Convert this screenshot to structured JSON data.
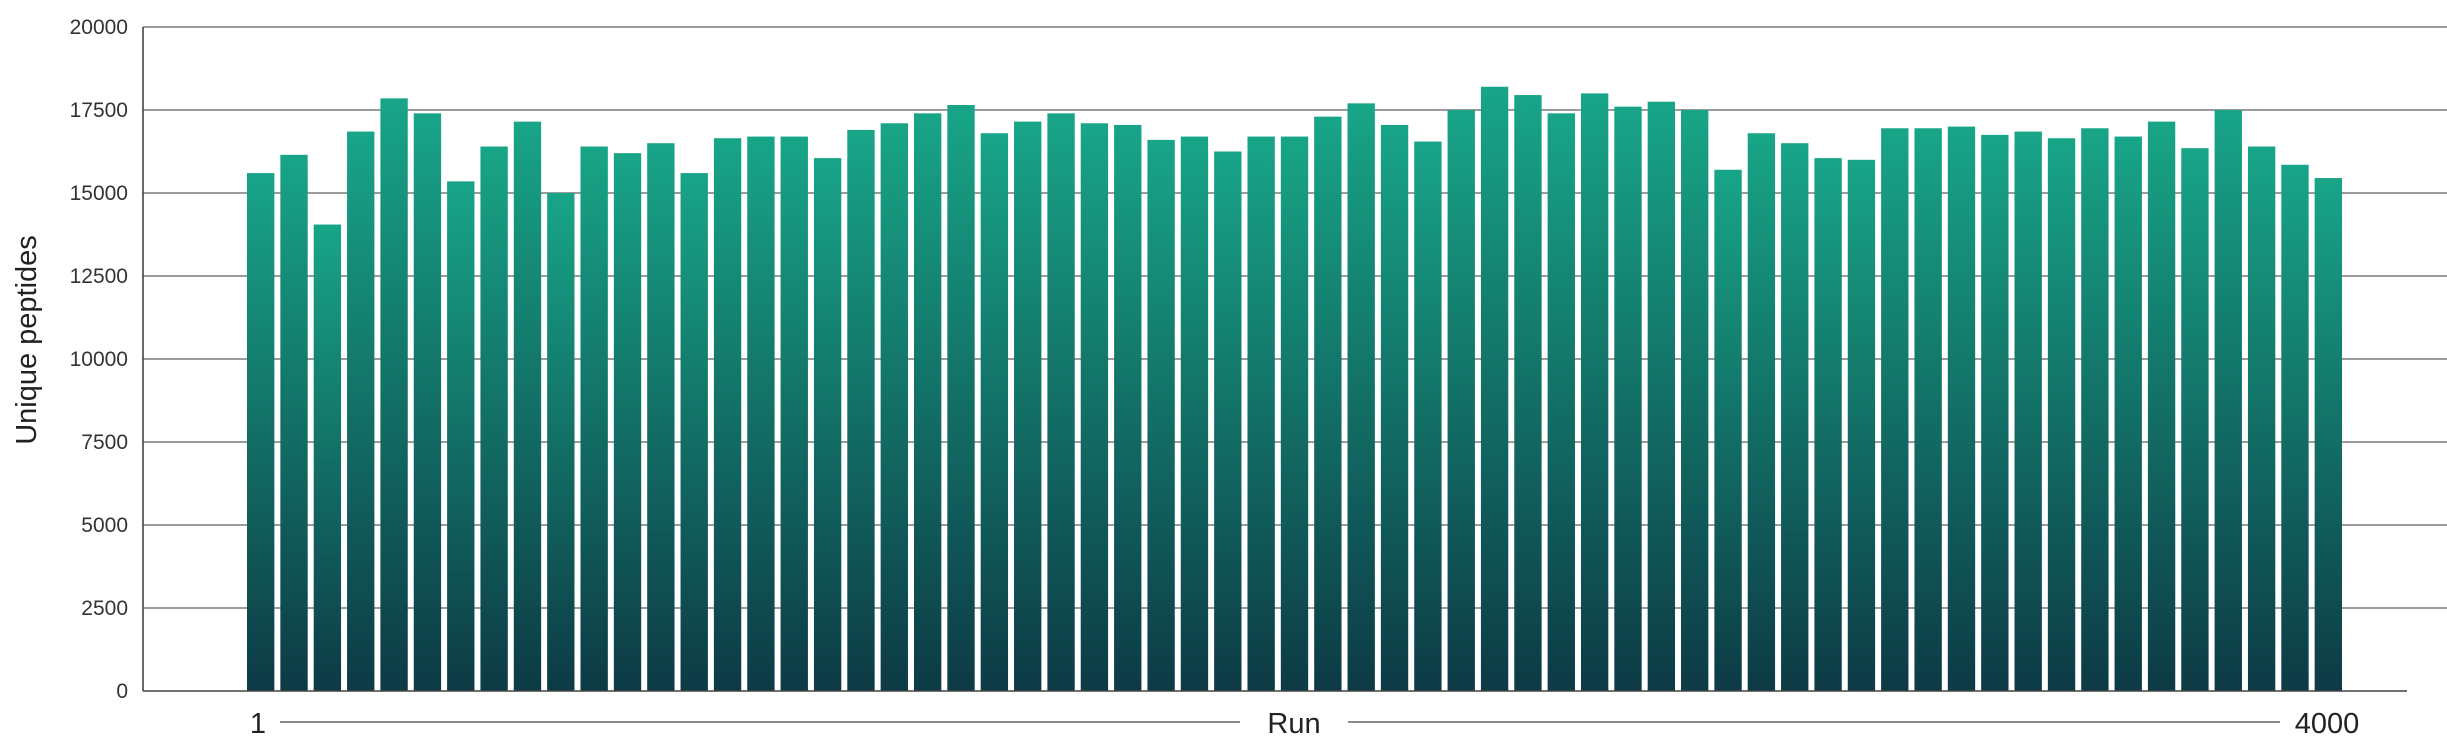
{
  "chart_data": {
    "type": "bar",
    "ylabel": "Unique peptides",
    "xlabel": "Run",
    "x_start_label": "1",
    "x_end_label": "4000",
    "ylim": [
      0,
      20000
    ],
    "yticks": [
      0,
      2500,
      5000,
      7500,
      10000,
      12500,
      15000,
      17500,
      20000
    ],
    "grid": true,
    "colors": {
      "bar_top": "#18a587",
      "bar_bottom": "#0d3a45"
    },
    "values": [
      15600,
      16150,
      14050,
      16850,
      17850,
      17400,
      15350,
      16400,
      17150,
      15000,
      16400,
      16200,
      16500,
      15600,
      16650,
      16700,
      16700,
      16050,
      16900,
      17100,
      17400,
      17650,
      16800,
      17150,
      17400,
      17100,
      17050,
      16600,
      16700,
      16250,
      16700,
      16700,
      17300,
      17700,
      17050,
      16550,
      17500,
      18200,
      17950,
      17400,
      18000,
      17600,
      17750,
      17500,
      15700,
      16800,
      16500,
      16050,
      16000,
      16950,
      16950,
      17000,
      16750,
      16850,
      16650,
      16950,
      16700,
      17150,
      16350,
      17500,
      16400,
      15850,
      15450
    ]
  }
}
